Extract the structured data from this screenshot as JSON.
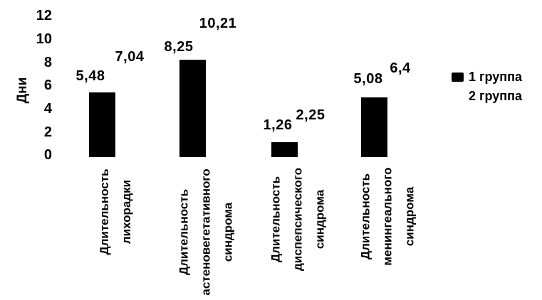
{
  "chart_data": {
    "type": "bar",
    "title": "",
    "ylabel": "Дни",
    "ylim": [
      0,
      12
    ],
    "ytick_step": 2,
    "ytick_labels": [
      "12",
      "10",
      "8",
      "6",
      "4",
      "2",
      "0"
    ],
    "grid": false,
    "legend_position": "right",
    "categories": [
      {
        "label": "Длительность лихорадки",
        "lines": [
          "Длительность",
          "лихорадки"
        ]
      },
      {
        "label": "Длительность астеновегетативного синдрома",
        "lines": [
          "Длительность",
          "астеновегетативного",
          "синдрома"
        ]
      },
      {
        "label": "Длительность диспепсического синдрома",
        "lines": [
          "Длительность",
          "диспепсического",
          "синдрома"
        ]
      },
      {
        "label": "Длительность менингеального синдрома",
        "lines": [
          "Длительность",
          "менингеального",
          "синдрома"
        ]
      }
    ],
    "series": [
      {
        "name": "1 группа",
        "color": "#000000",
        "values": [
          5.48,
          8.25,
          1.26,
          5.08
        ],
        "display": [
          "5,48",
          "8,25",
          "1,26",
          "5,08"
        ]
      },
      {
        "name": "2 группа",
        "color": "#ffffff",
        "values": [
          7.04,
          10.21,
          2.25,
          6.4
        ],
        "display": [
          "7,04",
          "10,21",
          "2,25",
          "6,4"
        ]
      }
    ]
  }
}
